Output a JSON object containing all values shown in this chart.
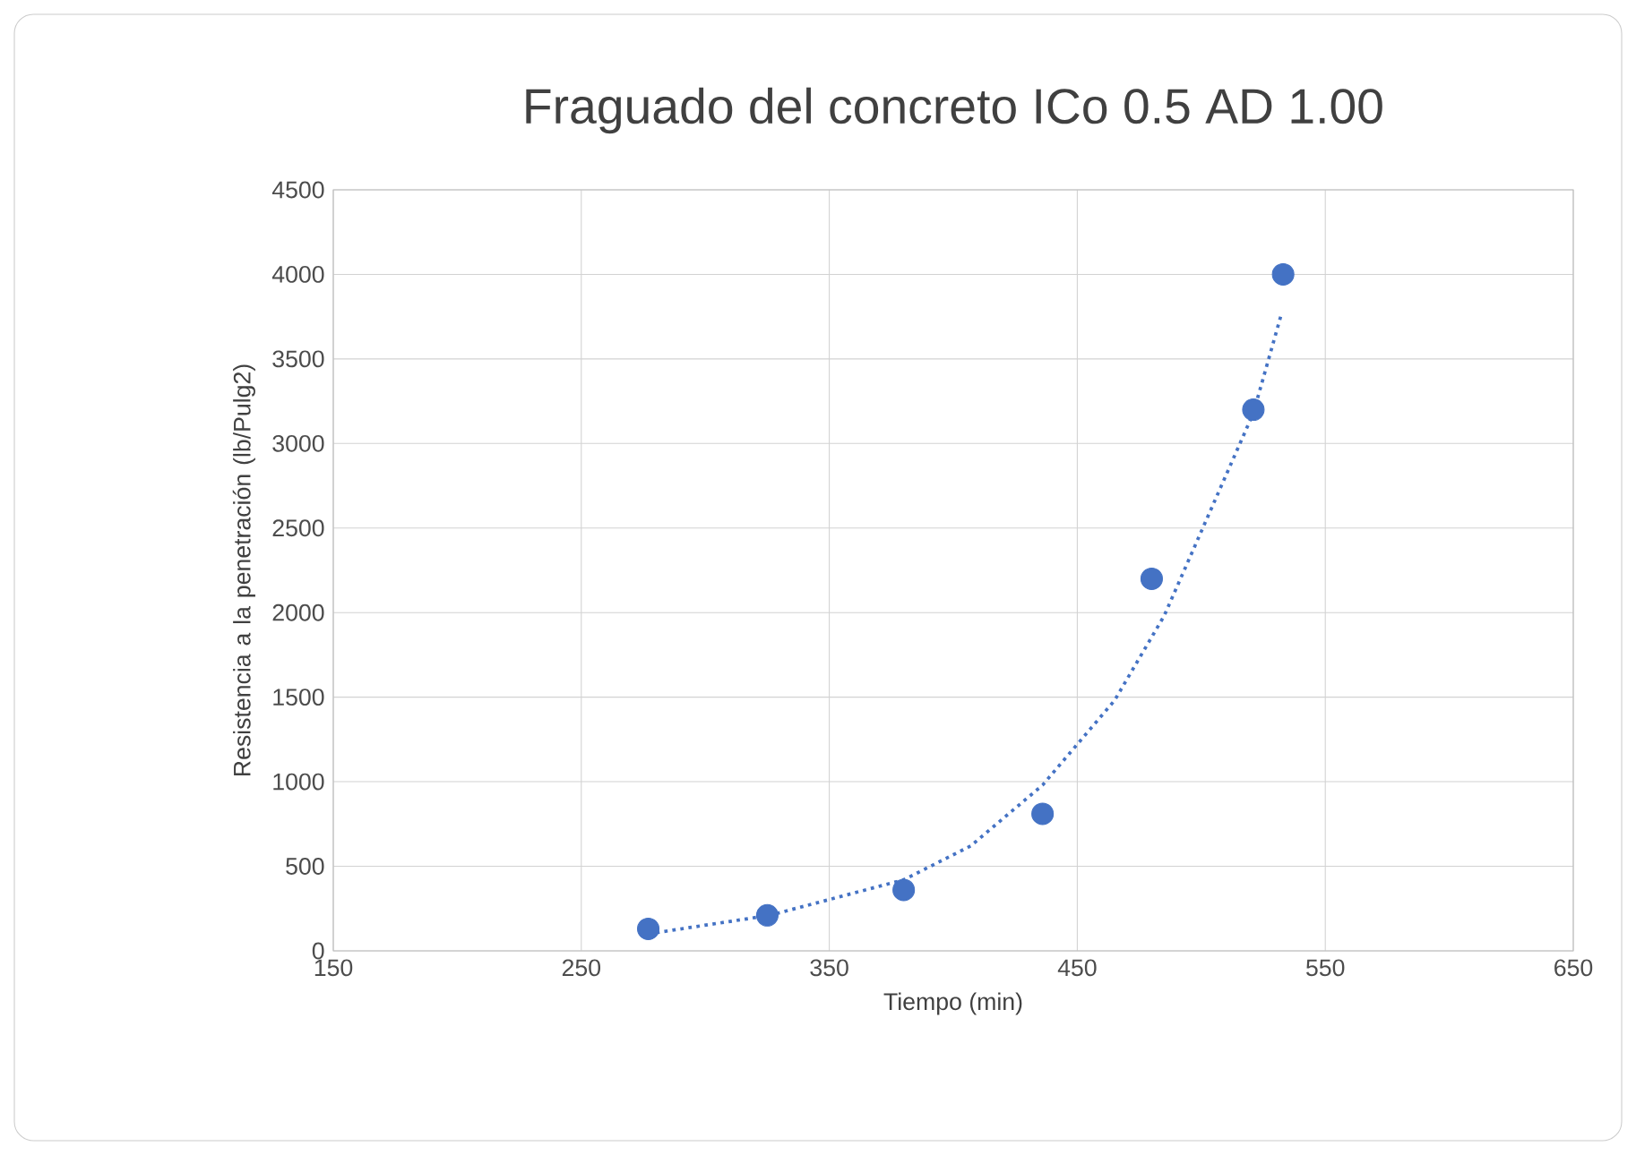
{
  "chart_data": {
    "type": "scatter",
    "title": "Fraguado del concreto ICo 0.5 AD 1.00",
    "xlabel": "Tiempo (min)",
    "ylabel": "Resistencia a la penetración (lb/Pulg2)",
    "xlim": [
      150,
      650
    ],
    "xticks": [
      150,
      250,
      350,
      450,
      550,
      650
    ],
    "ylim": [
      0,
      4500
    ],
    "yticks": [
      0,
      500,
      1000,
      1500,
      2000,
      2500,
      3000,
      3500,
      4000,
      4500
    ],
    "grid": true,
    "series": [
      {
        "color": "#4472c4",
        "marker": "circle",
        "x": [
          277,
          325,
          380,
          436,
          480,
          521,
          533
        ],
        "values": [
          130,
          210,
          360,
          810,
          2200,
          3200,
          4000
        ]
      },
      {
        "type": "line",
        "color": "#4472c4",
        "marker": "none",
        "line_style": "dotted",
        "x": [
          277,
          326,
          380,
          407,
          436,
          465,
          485,
          506,
          521,
          532
        ],
        "values": [
          100,
          210,
          420,
          620,
          980,
          1480,
          1980,
          2680,
          3180,
          3750
        ]
      }
    ]
  }
}
